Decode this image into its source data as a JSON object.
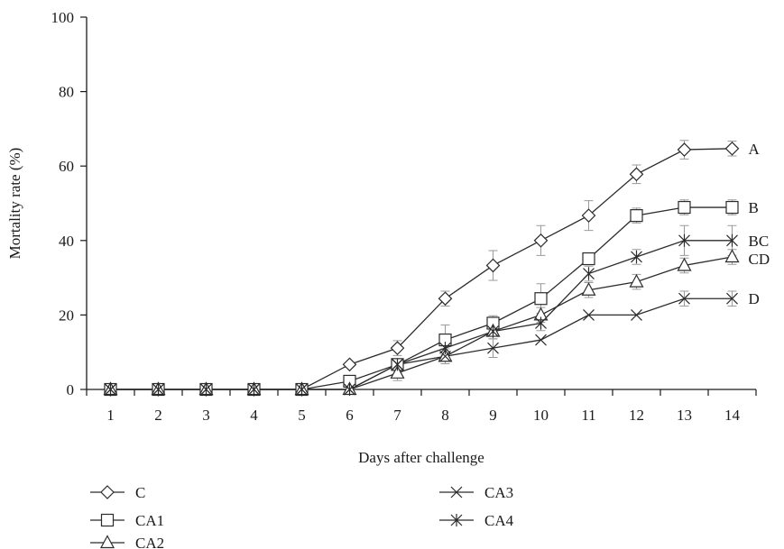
{
  "chart_data": {
    "type": "line",
    "title": "",
    "xlabel": "Days after challenge",
    "ylabel": "Mortality rate (%)",
    "x": [
      1,
      2,
      3,
      4,
      5,
      6,
      7,
      8,
      9,
      10,
      11,
      12,
      13,
      14
    ],
    "xlim": [
      0.5,
      14.5
    ],
    "ylim": [
      0,
      100
    ],
    "yticks": [
      0,
      20,
      40,
      60,
      80,
      100
    ],
    "grid": false,
    "legend_position": "bottom-left",
    "series": [
      {
        "name": "C",
        "marker": "diamond",
        "end_label": "A",
        "values": [
          0,
          0,
          0,
          0,
          0,
          6.7,
          11.1,
          24.4,
          33.3,
          40,
          46.7,
          57.8,
          64.4,
          64.7
        ],
        "errors": [
          0,
          0,
          0,
          0,
          0,
          0,
          2,
          2,
          4,
          4,
          4,
          2.5,
          2.5,
          2
        ]
      },
      {
        "name": "CA1",
        "marker": "square",
        "end_label": "B",
        "values": [
          0,
          0,
          0,
          0,
          0,
          2.2,
          6.7,
          13.3,
          17.8,
          24.4,
          35.1,
          46.7,
          48.9,
          48.9
        ],
        "errors": [
          0,
          0,
          0,
          0,
          0,
          0,
          0,
          4,
          2,
          4,
          0,
          2,
          2,
          2
        ]
      },
      {
        "name": "CA2",
        "marker": "triangle",
        "end_label": "CD",
        "values": [
          0,
          0,
          0,
          0,
          0,
          0,
          4.4,
          8.9,
          15.6,
          20,
          26.7,
          28.9,
          33.3,
          35.6
        ],
        "errors": [
          0,
          0,
          0,
          0,
          0,
          0,
          2,
          2,
          2,
          2,
          2,
          2,
          2,
          2
        ]
      },
      {
        "name": "CA3",
        "marker": "x",
        "end_label": "D",
        "values": [
          0,
          0,
          0,
          0,
          0,
          0,
          6.7,
          8.9,
          11.1,
          13.3,
          20,
          20,
          24.4,
          24.4
        ],
        "errors": [
          0,
          0,
          0,
          0,
          0,
          0,
          0,
          2,
          2.5,
          0,
          0,
          0,
          2,
          2
        ]
      },
      {
        "name": "CA4",
        "marker": "asterisk",
        "end_label": "BC",
        "values": [
          0,
          0,
          0,
          0,
          0,
          0,
          6.7,
          11.1,
          15.6,
          17.8,
          31.1,
          35.6,
          40,
          40
        ],
        "errors": [
          0,
          0,
          0,
          0,
          0,
          0,
          0,
          2,
          2,
          2,
          2,
          2,
          4,
          4
        ]
      }
    ],
    "colors": {
      "line": "#2b2b2b",
      "error_bar": "#9a9a9a",
      "axis": "#1a1a1a"
    }
  }
}
